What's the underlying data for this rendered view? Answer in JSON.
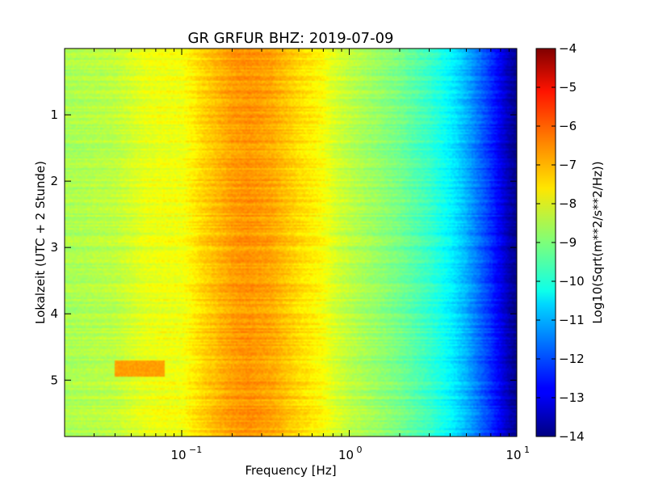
{
  "chart_data": {
    "type": "heatmap",
    "title": "GR GRFUR BHZ: 2019-07-09",
    "xlabel": "Frequency [Hz]",
    "ylabel": "Lokalzeit (UTC + 2 Stunde)",
    "x_scale": "log",
    "xlim": [
      0.02,
      10
    ],
    "x_ticks": [
      {
        "value": 0.1,
        "base": "10",
        "exp": "−1"
      },
      {
        "value": 1,
        "base": "10",
        "exp": "0"
      },
      {
        "value": 10,
        "base": "10",
        "exp": "1"
      }
    ],
    "ylim": [
      5.85,
      0
    ],
    "y_ticks": [
      {
        "value": 1,
        "label": "1"
      },
      {
        "value": 2,
        "label": "2"
      },
      {
        "value": 3,
        "label": "3"
      },
      {
        "value": 4,
        "label": "4"
      },
      {
        "value": 5,
        "label": "5"
      }
    ],
    "colorbar": {
      "label": "Log10(Sqrt(m**2/s**2/Hz))",
      "range": [
        -14,
        -4
      ],
      "colormap": "jet",
      "ticks": [
        {
          "value": -4,
          "label": "−4"
        },
        {
          "value": -5,
          "label": "−5"
        },
        {
          "value": -6,
          "label": "−6"
        },
        {
          "value": -7,
          "label": "−7"
        },
        {
          "value": -8,
          "label": "−8"
        },
        {
          "value": -9,
          "label": "−9"
        },
        {
          "value": -10,
          "label": "−10"
        },
        {
          "value": -11,
          "label": "−11"
        },
        {
          "value": -12,
          "label": "−12"
        },
        {
          "value": -13,
          "label": "−13"
        },
        {
          "value": -14,
          "label": "−14"
        }
      ]
    },
    "spectrum_profile": {
      "frequencies_hz": [
        0.02,
        0.04,
        0.06,
        0.08,
        0.1,
        0.13,
        0.16,
        0.2,
        0.25,
        0.3,
        0.35,
        0.4,
        0.5,
        0.6,
        0.7,
        0.8,
        1.0,
        1.5,
        2.0,
        3.0,
        4.0,
        5.0,
        6.0,
        7.0,
        8.0,
        9.0,
        10.0
      ],
      "values": [
        -8.6,
        -8.4,
        -8.0,
        -7.9,
        -7.9,
        -7.4,
        -7.1,
        -6.8,
        -6.7,
        -6.8,
        -6.9,
        -7.1,
        -7.4,
        -7.6,
        -7.8,
        -8.1,
        -8.4,
        -8.8,
        -9.1,
        -9.7,
        -10.3,
        -11.0,
        -11.7,
        -12.3,
        -12.9,
        -13.5,
        -13.9
      ]
    },
    "features": {
      "high_amplitude_band": {
        "time_range": [
          4.7,
          4.95
        ],
        "freq_range_hz": [
          0.04,
          0.08
        ],
        "value": -6.8
      }
    }
  }
}
